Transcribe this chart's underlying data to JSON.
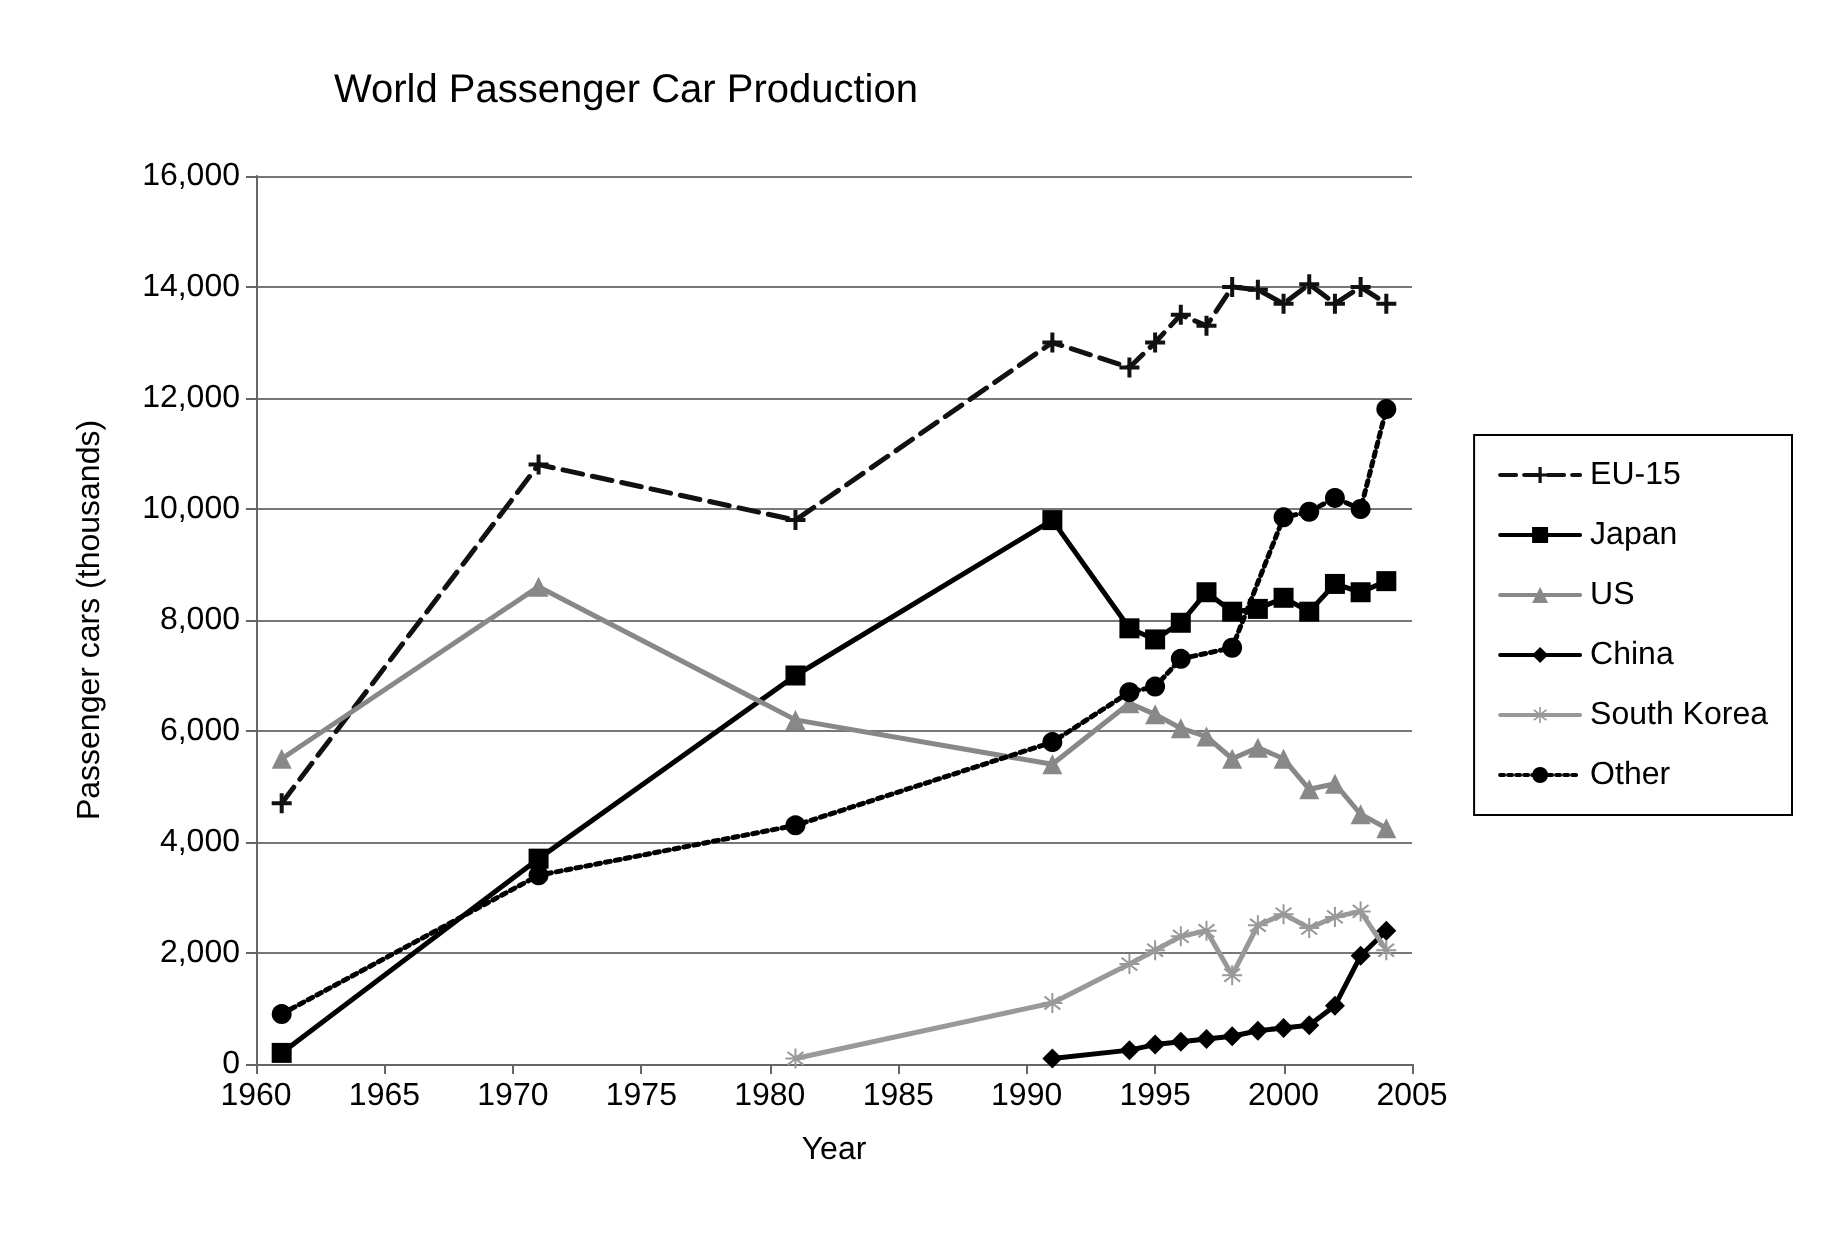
{
  "chart_data": {
    "type": "line",
    "title": "World Passenger Car Production",
    "xlabel": "Year",
    "ylabel": "Passenger cars (thousands)",
    "x": [
      1961,
      1971,
      1981,
      1991,
      1994,
      1995,
      1996,
      1997,
      1998,
      1999,
      2000,
      2001,
      2002,
      2003,
      2004
    ],
    "xlim": [
      1960,
      2005
    ],
    "xticks": [
      1960,
      1965,
      1970,
      1975,
      1980,
      1985,
      1990,
      1995,
      2000,
      2005
    ],
    "ylim": [
      0,
      16000
    ],
    "yticks": [
      0,
      {
        "value": 2000,
        "label": "2,000"
      },
      {
        "value": 4000,
        "label": "4,000"
      },
      {
        "value": 6000,
        "label": "6,000"
      },
      {
        "value": 8000,
        "label": "8,000"
      },
      {
        "value": 10000,
        "label": "10,000"
      },
      {
        "value": 12000,
        "label": "12,000"
      },
      {
        "value": 14000,
        "label": "14,000"
      },
      {
        "value": 16000,
        "label": "16,000"
      }
    ],
    "grid": "y",
    "legend": "right",
    "series": [
      {
        "name": "EU-15",
        "color": "#111111",
        "marker": "cross",
        "line_style": "dashed",
        "values": [
          4700,
          10800,
          9800,
          13000,
          12550,
          13000,
          13500,
          13300,
          14000,
          13950,
          13700,
          14050,
          13700,
          14000,
          13700
        ]
      },
      {
        "name": "Japan",
        "color": "#000000",
        "marker": "square",
        "line_style": "solid",
        "values": [
          200,
          3700,
          7000,
          9800,
          7850,
          7650,
          7950,
          8500,
          8150,
          8200,
          8400,
          8150,
          8650,
          8500,
          8700
        ]
      },
      {
        "name": "US",
        "color": "#888888",
        "marker": "triangle",
        "line_style": "solid",
        "values": [
          5500,
          8600,
          6200,
          5400,
          6500,
          6300,
          6050,
          5900,
          5500,
          5700,
          5500,
          4950,
          5050,
          4500,
          4250
        ]
      },
      {
        "name": "China",
        "color": "#000000",
        "marker": "diamond",
        "line_style": "solid",
        "values": [
          null,
          null,
          null,
          100,
          250,
          350,
          400,
          450,
          500,
          600,
          650,
          700,
          1050,
          1950,
          2400
        ]
      },
      {
        "name": "South Korea",
        "color": "#999999",
        "marker": "star",
        "line_style": "solid",
        "values": [
          null,
          null,
          100,
          1100,
          1800,
          2050,
          2300,
          2400,
          1600,
          2500,
          2700,
          2450,
          2650,
          2750,
          2050
        ]
      },
      {
        "name": "Other",
        "color": "#000000",
        "marker": "circle",
        "line_style": "dotted",
        "values": [
          900,
          3400,
          4300,
          5800,
          6700,
          6800,
          7300,
          null,
          7500,
          null,
          9850,
          9950,
          10200,
          10000,
          11800
        ]
      }
    ]
  }
}
